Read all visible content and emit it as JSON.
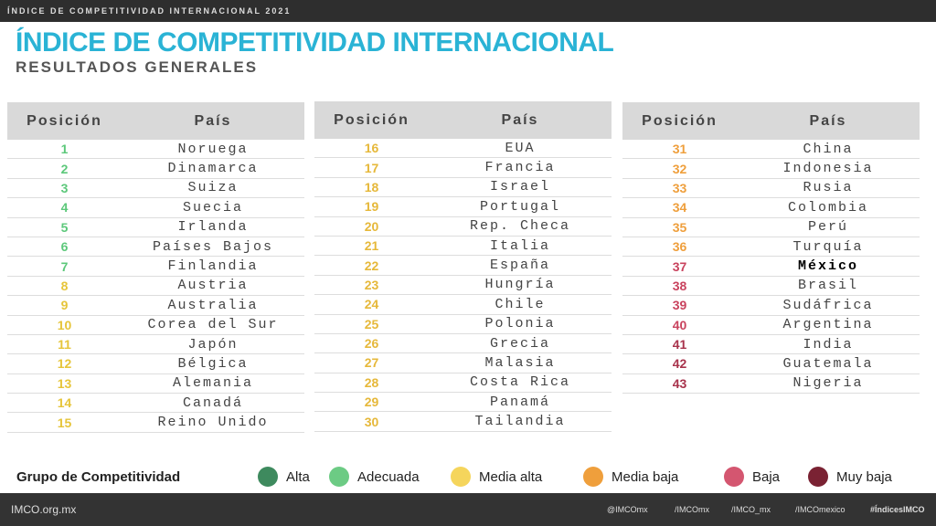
{
  "header": {
    "banner": "ÍNDICE DE COMPETITIVIDAD INTERNACIONAL 2021",
    "title": "ÍNDICE DE COMPETITIVIDAD INTERNACIONAL",
    "subtitle": "RESULTADOS GENERALES"
  },
  "tables": [
    {
      "columns": [
        "Posición",
        "País"
      ],
      "rows": [
        {
          "position": "1",
          "country": "Noruega",
          "color": "#5cc87a"
        },
        {
          "position": "2",
          "country": "Dinamarca",
          "color": "#5cc87a"
        },
        {
          "position": "3",
          "country": "Suiza",
          "color": "#5cc87a"
        },
        {
          "position": "4",
          "country": "Suecia",
          "color": "#5cc87a"
        },
        {
          "position": "5",
          "country": "Irlanda",
          "color": "#5cc87a"
        },
        {
          "position": "6",
          "country": "Países Bajos",
          "color": "#5cc87a"
        },
        {
          "position": "7",
          "country": "Finlandia",
          "color": "#5cc87a"
        },
        {
          "position": "8",
          "country": "Austria",
          "color": "#e6c53a"
        },
        {
          "position": "9",
          "country": "Australia",
          "color": "#e6c53a"
        },
        {
          "position": "10",
          "country": "Corea del Sur",
          "color": "#e6c53a"
        },
        {
          "position": "11",
          "country": "Japón",
          "color": "#e6c53a"
        },
        {
          "position": "12",
          "country": "Bélgica",
          "color": "#e6c53a"
        },
        {
          "position": "13",
          "country": "Alemania",
          "color": "#e6c53a"
        },
        {
          "position": "14",
          "country": "Canadá",
          "color": "#e6c53a"
        },
        {
          "position": "15",
          "country": "Reino Unido",
          "color": "#e6c53a"
        }
      ]
    },
    {
      "columns": [
        "Posición",
        "País"
      ],
      "rows": [
        {
          "position": "16",
          "country": "EUA",
          "color": "#e6b83a"
        },
        {
          "position": "17",
          "country": "Francia",
          "color": "#e6b83a"
        },
        {
          "position": "18",
          "country": "Israel",
          "color": "#e6b83a"
        },
        {
          "position": "19",
          "country": "Portugal",
          "color": "#e6b83a"
        },
        {
          "position": "20",
          "country": "Rep. Checa",
          "color": "#e6b83a"
        },
        {
          "position": "21",
          "country": "Italia",
          "color": "#e6b83a"
        },
        {
          "position": "22",
          "country": "España",
          "color": "#e6b83a"
        },
        {
          "position": "23",
          "country": "Hungría",
          "color": "#e6b83a"
        },
        {
          "position": "24",
          "country": "Chile",
          "color": "#e6b83a"
        },
        {
          "position": "25",
          "country": "Polonia",
          "color": "#e6b83a"
        },
        {
          "position": "26",
          "country": "Grecia",
          "color": "#e6b83a"
        },
        {
          "position": "27",
          "country": "Malasia",
          "color": "#e6b83a"
        },
        {
          "position": "28",
          "country": "Costa Rica",
          "color": "#e6b83a"
        },
        {
          "position": "29",
          "country": "Panamá",
          "color": "#e6b83a"
        },
        {
          "position": "30",
          "country": "Tailandia",
          "color": "#e6b83a"
        }
      ]
    },
    {
      "columns": [
        "Posición",
        "País"
      ],
      "rows": [
        {
          "position": "31",
          "country": "China",
          "color": "#ef9f3c"
        },
        {
          "position": "32",
          "country": "Indonesia",
          "color": "#ef9f3c"
        },
        {
          "position": "33",
          "country": "Rusia",
          "color": "#ef9f3c"
        },
        {
          "position": "34",
          "country": "Colombia",
          "color": "#ef9f3c"
        },
        {
          "position": "35",
          "country": "Perú",
          "color": "#ef9f3c"
        },
        {
          "position": "36",
          "country": "Turquía",
          "color": "#ef9f3c"
        },
        {
          "position": "37",
          "country": "México",
          "color": "#c9435e",
          "bold": true
        },
        {
          "position": "38",
          "country": "Brasil",
          "color": "#c9435e"
        },
        {
          "position": "39",
          "country": "Sudáfrica",
          "color": "#c9435e"
        },
        {
          "position": "40",
          "country": "Argentina",
          "color": "#c9435e"
        },
        {
          "position": "41",
          "country": "India",
          "color": "#a8334c"
        },
        {
          "position": "42",
          "country": "Guatemala",
          "color": "#a8334c"
        },
        {
          "position": "43",
          "country": "Nigeria",
          "color": "#a8334c"
        }
      ]
    }
  ],
  "legend": {
    "title": "Grupo de Competitividad",
    "items": [
      {
        "label": "Alta",
        "color": "#3e8a5e"
      },
      {
        "label": "Adecuada",
        "color": "#6ccb84"
      },
      {
        "label": "Media alta",
        "color": "#f5d55c"
      },
      {
        "label": "Media baja",
        "color": "#ef9f3c"
      },
      {
        "label": "Baja",
        "color": "#d45670"
      },
      {
        "label": "Muy baja",
        "color": "#7a2233"
      }
    ]
  },
  "footer": {
    "site": "IMCO.org.mx",
    "twitter": "@IMCOmx",
    "facebook": "/IMCOmx",
    "instagram": "/IMCO_mx",
    "youtube": "/IMCOmexico",
    "hashtag": "#ÍndicesIMCO"
  }
}
